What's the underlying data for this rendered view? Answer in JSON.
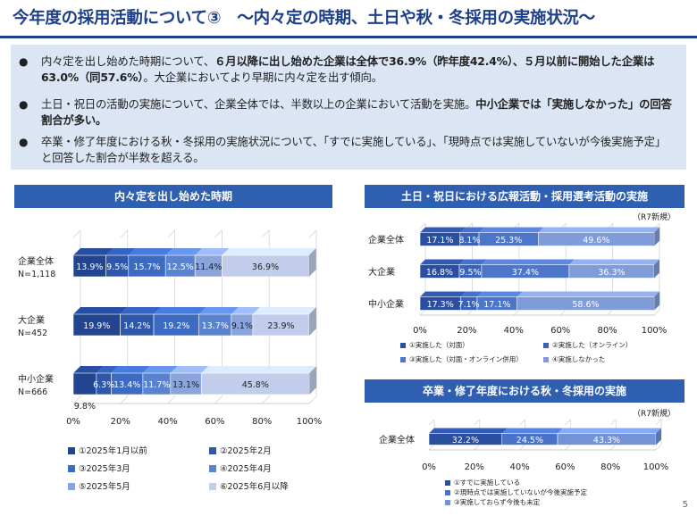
{
  "title": "今年度の採用活動について③　～内々定の時期、土日や秋・冬採用の実施状況～",
  "page_number": "5",
  "colors": {
    "title": "#1e3f8a",
    "panel_header": "#2e5fb0",
    "summary_bg": "#dbe5f4",
    "series_timing": [
      "#23448f",
      "#2f57a9",
      "#3e6bc2",
      "#5a83cf",
      "#8ba5dc",
      "#c1cdea"
    ],
    "series_weekend": [
      "#2b4f9e",
      "#3a62b8",
      "#4d76c9",
      "#7f9bd8"
    ],
    "series_autumn": [
      "#2b4f9e",
      "#4a72c6",
      "#7393d6"
    ]
  },
  "summary": {
    "bullets": [
      {
        "segments": [
          {
            "t": "内々定を出し始めた時期について、",
            "b": false
          },
          {
            "t": "６月以降に出し始めた企業は全体で36.9%（昨年度42.4%）、５月以前に開始した企業は63.0%（同57.6%）",
            "b": true
          },
          {
            "t": "。大企業においてより早期に内々定を出す傾向。",
            "b": false
          }
        ]
      },
      {
        "segments": [
          {
            "t": "土日・祝日の活動の実施について、企業全体では、半数以上の企業において活動を実施。",
            "b": false
          },
          {
            "t": "中小企業では「実施しなかった」の回答割合が多い。",
            "b": true
          }
        ]
      },
      {
        "segments": [
          {
            "t": "卒業・修了年度における秋・冬採用の実施状況について、「すでに実施している」、「現時点では実施していないが今後実施予定」と回答した割合が半数を超える。",
            "b": false
          }
        ]
      }
    ]
  },
  "r7_note": "（R7新規）",
  "chart_data": [
    {
      "type": "bar",
      "orientation": "horizontal",
      "stacked": true,
      "title": "内々定を出し始めた時期",
      "categories": [
        "企業全体",
        "大企業",
        "中小企業"
      ],
      "category_sublabels": [
        "N=1,118",
        "N=452",
        "N=666"
      ],
      "series": [
        {
          "name": "①2025年1月以前",
          "values": [
            13.9,
            19.9,
            9.8
          ]
        },
        {
          "name": "②2025年2月",
          "values": [
            9.5,
            14.2,
            6.3
          ]
        },
        {
          "name": "③2025年3月",
          "values": [
            15.7,
            19.2,
            13.4
          ]
        },
        {
          "name": "④2025年4月",
          "values": [
            12.5,
            13.7,
            11.7
          ]
        },
        {
          "name": "⑤2025年5月",
          "values": [
            11.4,
            9.1,
            13.1
          ]
        },
        {
          "name": "⑥2025年6月以降",
          "values": [
            36.9,
            23.9,
            45.8
          ]
        }
      ],
      "data_labels": [
        [
          "13.9%",
          "9.5%",
          "15.7%",
          "12.5%",
          "11.4%",
          "36.9%"
        ],
        [
          "19.9%",
          "14.2%",
          "19.2%",
          "13.7%",
          "9.1%",
          "23.9%"
        ],
        [
          "9.8%",
          "6.3%",
          "13.4%",
          "11.7%",
          "13.1%",
          "45.8%"
        ]
      ],
      "xlim": [
        0,
        100
      ],
      "xticks": [
        "0%",
        "20%",
        "40%",
        "60%",
        "80%",
        "100%"
      ],
      "legend_position": "bottom"
    },
    {
      "type": "bar",
      "orientation": "horizontal",
      "stacked": true,
      "title": "土日・祝日における広報活動・採用選考活動の実施",
      "categories": [
        "企業全体",
        "大企業",
        "中小企業"
      ],
      "series": [
        {
          "name": "①実施した（対面）",
          "values": [
            17.1,
            16.8,
            17.3
          ]
        },
        {
          "name": "②実施した（オンライン）",
          "values": [
            8.1,
            9.5,
            7.1
          ]
        },
        {
          "name": "③実施した（対面・オンライン併用）",
          "values": [
            25.3,
            37.4,
            17.1
          ]
        },
        {
          "name": "④実施しなかった",
          "values": [
            49.6,
            36.3,
            58.6
          ]
        }
      ],
      "data_labels": [
        [
          "17.1%",
          "8.1%",
          "25.3%",
          "49.6%"
        ],
        [
          "16.8%",
          "9.5%",
          "37.4%",
          "36.3%"
        ],
        [
          "17.3%",
          "7.1%",
          "17.1%",
          "58.6%"
        ]
      ],
      "xlim": [
        0,
        100
      ],
      "xticks": [
        "0%",
        "20%",
        "40%",
        "60%",
        "80%",
        "100%"
      ],
      "legend_position": "bottom"
    },
    {
      "type": "bar",
      "orientation": "horizontal",
      "stacked": true,
      "title": "卒業・修了年度における秋・冬採用の実施",
      "categories": [
        "企業全体"
      ],
      "series": [
        {
          "name": "①すでに実施している",
          "values": [
            32.2
          ]
        },
        {
          "name": "②現時点では実施していないが今後実施予定",
          "values": [
            24.5
          ]
        },
        {
          "name": "③実施しておらず今後も未定",
          "values": [
            43.3
          ]
        }
      ],
      "data_labels": [
        [
          "32.2%",
          "24.5%",
          "43.3%"
        ]
      ],
      "xlim": [
        0,
        100
      ],
      "xticks": [
        "0%",
        "20%",
        "40%",
        "60%",
        "80%",
        "100%"
      ],
      "legend_position": "bottom"
    }
  ]
}
